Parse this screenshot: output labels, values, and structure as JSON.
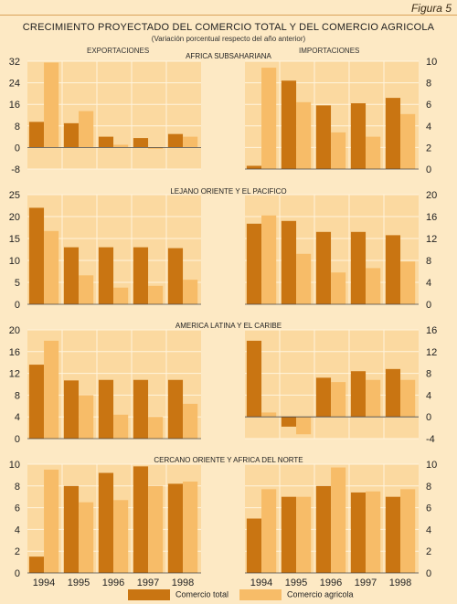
{
  "figure_tag": "Figura 5",
  "title": "CRECIMIENTO PROYECTADO DEL COMERCIO TOTAL Y DEL COMERCIO AGRICOLA",
  "subtitle": "(Variación porcentual respecto del año anterior)",
  "column_labels": {
    "left": "EXPORTACIONES",
    "right": "IMPORTACIONES"
  },
  "legend": {
    "total": "Comercio total",
    "agri": "Comercio agricola"
  },
  "colors": {
    "total": "#c97512",
    "agri": "#f7bc68",
    "background": "#fde9c4",
    "panel": "#fbd9a0",
    "grid": "#fff4dc"
  },
  "chart_data": [
    {
      "type": "bar",
      "region": "AFRICA SUBSAHARIANA",
      "panel": "exportaciones",
      "categories": [
        "1994",
        "1995",
        "1996",
        "1997",
        "1998"
      ],
      "series": [
        {
          "name": "Comercio total",
          "values": [
            9.5,
            9,
            4,
            3.5,
            5
          ]
        },
        {
          "name": "Comercio agricola",
          "values": [
            31.5,
            13.5,
            1,
            -0.5,
            4
          ]
        }
      ],
      "ylim": [
        -8,
        32
      ],
      "yticks": [
        -8,
        0,
        8,
        16,
        24,
        32
      ]
    },
    {
      "type": "bar",
      "region": "",
      "panel": "importaciones",
      "categories": [
        "1994",
        "1995",
        "1996",
        "1997",
        "1998"
      ],
      "series": [
        {
          "name": "Comercio total",
          "values": [
            0.3,
            8.2,
            5.9,
            6.1,
            6.6
          ]
        },
        {
          "name": "Comercio agricola",
          "values": [
            9.4,
            6.2,
            3.4,
            3.0,
            5.1
          ]
        }
      ],
      "ylim": [
        0,
        10
      ],
      "yticks": [
        0,
        2,
        4,
        6,
        8,
        10
      ]
    },
    {
      "type": "bar",
      "region": "LEJANO ORIENTE Y EL PACIFICO",
      "panel": "exportaciones",
      "categories": [
        "1994",
        "1995",
        "1996",
        "1997",
        "1998"
      ],
      "series": [
        {
          "name": "Comercio total",
          "values": [
            22,
            13,
            13,
            13,
            12.8
          ]
        },
        {
          "name": "Comercio agricola",
          "values": [
            16.7,
            6.6,
            3.8,
            4.2,
            5.6
          ]
        }
      ],
      "ylim": [
        0,
        25
      ],
      "yticks": [
        0,
        5,
        10,
        15,
        20,
        25
      ]
    },
    {
      "type": "bar",
      "region": "",
      "panel": "importaciones",
      "categories": [
        "1994",
        "1995",
        "1996",
        "1997",
        "1998"
      ],
      "series": [
        {
          "name": "Comercio total",
          "values": [
            14.7,
            15.2,
            13.2,
            13.2,
            12.6
          ]
        },
        {
          "name": "Comercio agricola",
          "values": [
            16.2,
            9.2,
            5.8,
            6.6,
            7.8
          ]
        }
      ],
      "ylim": [
        0,
        20
      ],
      "yticks": [
        0,
        4,
        8,
        12,
        16,
        20
      ]
    },
    {
      "type": "bar",
      "region": "AMERICA LATINA Y EL CARIBE",
      "panel": "exportaciones",
      "categories": [
        "1994",
        "1995",
        "1996",
        "1997",
        "1998"
      ],
      "series": [
        {
          "name": "Comercio total",
          "values": [
            13.6,
            10.7,
            10.8,
            10.8,
            10.8
          ]
        },
        {
          "name": "Comercio agricola",
          "values": [
            18,
            8,
            4.4,
            4,
            6.4
          ]
        }
      ],
      "ylim": [
        0,
        20
      ],
      "yticks": [
        0,
        4,
        8,
        12,
        16,
        20
      ]
    },
    {
      "type": "bar",
      "region": "",
      "panel": "importaciones",
      "categories": [
        "1994",
        "1995",
        "1996",
        "1997",
        "1998"
      ],
      "series": [
        {
          "name": "Comercio total",
          "values": [
            14,
            -1.8,
            7.2,
            8.4,
            8.8
          ]
        },
        {
          "name": "Comercio agricola",
          "values": [
            0.8,
            -3.2,
            6.4,
            6.8,
            6.8
          ]
        }
      ],
      "ylim": [
        -4,
        16
      ],
      "yticks": [
        -4,
        0,
        4,
        8,
        12,
        16
      ]
    },
    {
      "type": "bar",
      "region": "CERCANO ORIENTE Y AFRICA DEL NORTE",
      "panel": "exportaciones",
      "categories": [
        "1994",
        "1995",
        "1996",
        "1997",
        "1998"
      ],
      "series": [
        {
          "name": "Comercio total",
          "values": [
            1.5,
            8,
            9.2,
            9.8,
            8.2
          ]
        },
        {
          "name": "Comercio agricola",
          "values": [
            9.5,
            6.5,
            6.7,
            8,
            8.4
          ]
        }
      ],
      "ylim": [
        0,
        10
      ],
      "yticks": [
        0,
        2,
        4,
        6,
        8,
        10
      ]
    },
    {
      "type": "bar",
      "region": "",
      "panel": "importaciones",
      "categories": [
        "1994",
        "1995",
        "1996",
        "1997",
        "1998"
      ],
      "series": [
        {
          "name": "Comercio total",
          "values": [
            5,
            7,
            8,
            7.4,
            7
          ]
        },
        {
          "name": "Comercio agricola",
          "values": [
            7.7,
            7,
            9.7,
            7.5,
            7.7
          ]
        }
      ],
      "ylim": [
        0,
        10
      ],
      "yticks": [
        0,
        2,
        4,
        6,
        8,
        10
      ]
    }
  ]
}
